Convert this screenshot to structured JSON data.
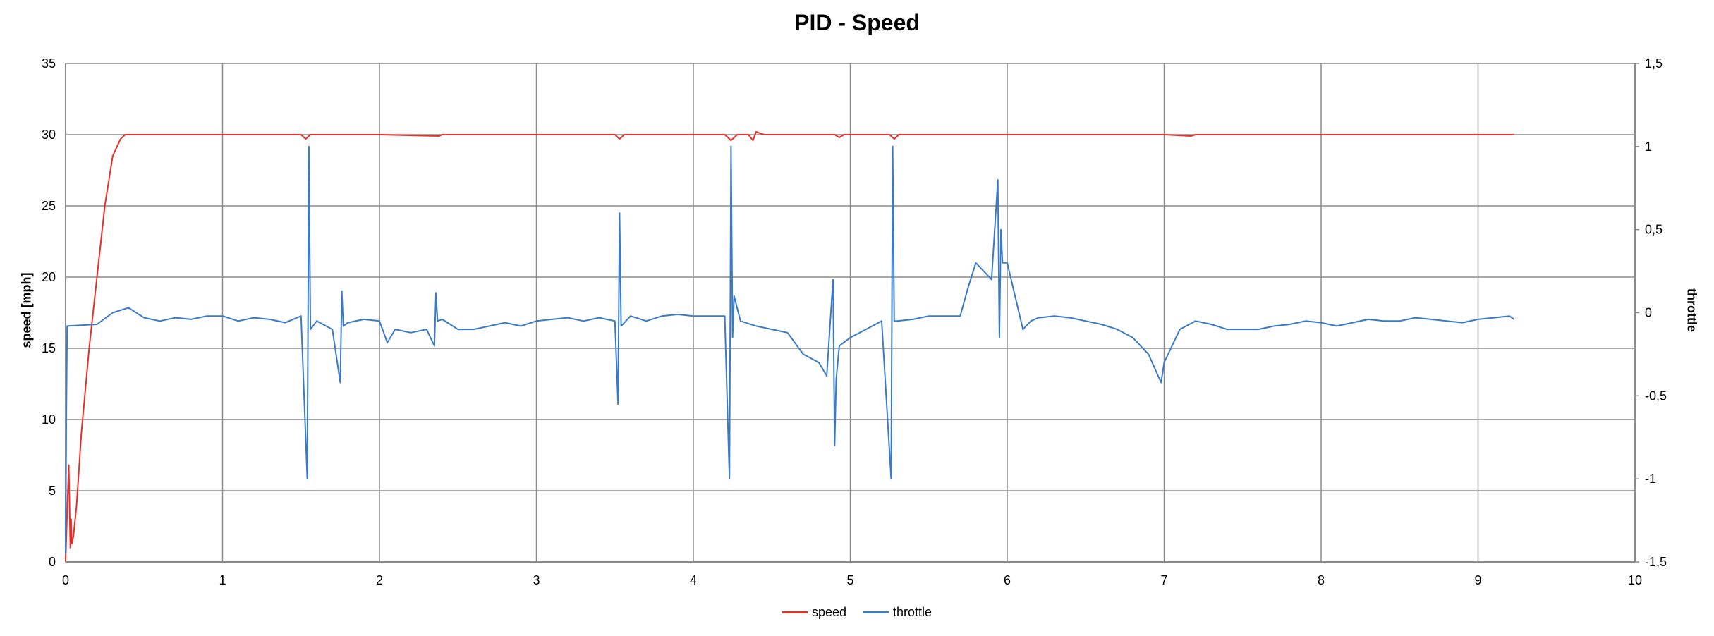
{
  "chart_data": {
    "type": "line",
    "title": "PID - Speed",
    "xlabel": "",
    "ylabel": "speed [mph]",
    "y2label": "throttle",
    "xlim": [
      0,
      10
    ],
    "ylim": [
      0,
      35
    ],
    "y2lim": [
      -1.5,
      1.5
    ],
    "x_ticks": [
      "0",
      "1",
      "2",
      "3",
      "4",
      "5",
      "6",
      "7",
      "8",
      "9",
      "10"
    ],
    "y_ticks": [
      "0",
      "5",
      "10",
      "15",
      "20",
      "25",
      "30",
      "35"
    ],
    "y2_ticks": [
      "-1,5",
      "-1",
      "-0,5",
      "0",
      "0,5",
      "1",
      "1,5"
    ],
    "grid": true,
    "legend_position": "bottom",
    "series": [
      {
        "name": "speed",
        "axis": "left",
        "color": "#e8302a",
        "x": [
          0.0,
          0.01,
          0.02,
          0.03,
          0.035,
          0.04,
          0.05,
          0.07,
          0.1,
          0.15,
          0.2,
          0.25,
          0.3,
          0.35,
          0.38,
          0.4,
          0.45,
          0.5,
          1.0,
          1.5,
          1.53,
          1.56,
          1.6,
          2.0,
          2.38,
          2.4,
          3.0,
          3.5,
          3.53,
          3.56,
          4.0,
          4.2,
          4.24,
          4.28,
          4.35,
          4.38,
          4.4,
          4.45,
          4.9,
          4.93,
          4.96,
          5.25,
          5.28,
          5.31,
          6.0,
          7.0,
          7.17,
          7.2,
          8.0,
          9.0,
          9.23
        ],
        "values": [
          0,
          3.5,
          6.8,
          1.0,
          3.0,
          1.3,
          1.8,
          4.0,
          9.0,
          15.0,
          20.0,
          25.0,
          28.5,
          29.7,
          30.0,
          30.0,
          30.0,
          30.0,
          30.0,
          30.0,
          29.7,
          30.0,
          30.0,
          30.0,
          29.9,
          30.0,
          30.0,
          30.0,
          29.7,
          30.0,
          30.0,
          30.0,
          29.6,
          30.0,
          30.0,
          29.6,
          30.2,
          30.0,
          30.0,
          29.8,
          30.0,
          30.0,
          29.7,
          30.0,
          30.0,
          30.0,
          29.9,
          30.0,
          30.0,
          30.0,
          30.0
        ]
      },
      {
        "name": "throttle",
        "axis": "right",
        "color": "#3a7bc8",
        "x": [
          0.0,
          0.005,
          0.01,
          0.2,
          0.3,
          0.4,
          0.5,
          0.6,
          0.7,
          0.8,
          0.9,
          1.0,
          1.1,
          1.2,
          1.3,
          1.4,
          1.5,
          1.54,
          1.55,
          1.56,
          1.6,
          1.7,
          1.75,
          1.76,
          1.77,
          1.8,
          1.9,
          2.0,
          2.05,
          2.1,
          2.2,
          2.3,
          2.35,
          2.36,
          2.37,
          2.4,
          2.5,
          2.6,
          2.7,
          2.8,
          2.9,
          3.0,
          3.1,
          3.2,
          3.3,
          3.4,
          3.5,
          3.52,
          3.53,
          3.54,
          3.6,
          3.7,
          3.8,
          3.9,
          4.0,
          4.1,
          4.2,
          4.23,
          4.24,
          4.25,
          4.26,
          4.3,
          4.4,
          4.5,
          4.6,
          4.7,
          4.8,
          4.85,
          4.89,
          4.9,
          4.91,
          4.93,
          5.0,
          5.1,
          5.2,
          5.26,
          5.27,
          5.28,
          5.3,
          5.4,
          5.5,
          5.6,
          5.7,
          5.75,
          5.8,
          5.85,
          5.9,
          5.94,
          5.95,
          5.96,
          5.97,
          6.0,
          6.05,
          6.1,
          6.15,
          6.2,
          6.3,
          6.4,
          6.5,
          6.6,
          6.7,
          6.8,
          6.9,
          6.98,
          7.0,
          7.05,
          7.1,
          7.2,
          7.3,
          7.4,
          7.5,
          7.6,
          7.7,
          7.8,
          7.9,
          8.0,
          8.1,
          8.2,
          8.3,
          8.4,
          8.5,
          8.6,
          8.7,
          8.8,
          8.9,
          9.0,
          9.1,
          9.2,
          9.23
        ],
        "values": [
          -1.45,
          -0.6,
          -0.08,
          -0.07,
          0.0,
          0.03,
          -0.03,
          -0.05,
          -0.03,
          -0.04,
          -0.02,
          -0.02,
          -0.05,
          -0.03,
          -0.04,
          -0.06,
          -0.02,
          -1.0,
          1.0,
          -0.1,
          -0.05,
          -0.1,
          -0.42,
          0.13,
          -0.08,
          -0.06,
          -0.04,
          -0.05,
          -0.18,
          -0.1,
          -0.12,
          -0.1,
          -0.2,
          0.12,
          -0.05,
          -0.04,
          -0.1,
          -0.1,
          -0.08,
          -0.06,
          -0.08,
          -0.05,
          -0.04,
          -0.03,
          -0.05,
          -0.03,
          -0.05,
          -0.55,
          0.6,
          -0.08,
          -0.02,
          -0.05,
          -0.02,
          -0.01,
          -0.02,
          -0.02,
          -0.02,
          -1.0,
          1.0,
          -0.15,
          0.1,
          -0.05,
          -0.08,
          -0.1,
          -0.12,
          -0.25,
          -0.3,
          -0.38,
          0.2,
          -0.8,
          -0.4,
          -0.2,
          -0.15,
          -0.1,
          -0.05,
          -1.0,
          1.0,
          -0.05,
          -0.05,
          -0.04,
          -0.02,
          -0.02,
          -0.02,
          0.15,
          0.3,
          0.25,
          0.2,
          0.8,
          -0.15,
          0.5,
          0.3,
          0.3,
          0.1,
          -0.1,
          -0.05,
          -0.03,
          -0.02,
          -0.03,
          -0.05,
          -0.07,
          -0.1,
          -0.15,
          -0.25,
          -0.42,
          -0.3,
          -0.2,
          -0.1,
          -0.05,
          -0.07,
          -0.1,
          -0.1,
          -0.1,
          -0.08,
          -0.07,
          -0.05,
          -0.06,
          -0.08,
          -0.06,
          -0.04,
          -0.05,
          -0.05,
          -0.03,
          -0.04,
          -0.05,
          -0.06,
          -0.04,
          -0.03,
          -0.02,
          -0.04
        ]
      }
    ]
  }
}
